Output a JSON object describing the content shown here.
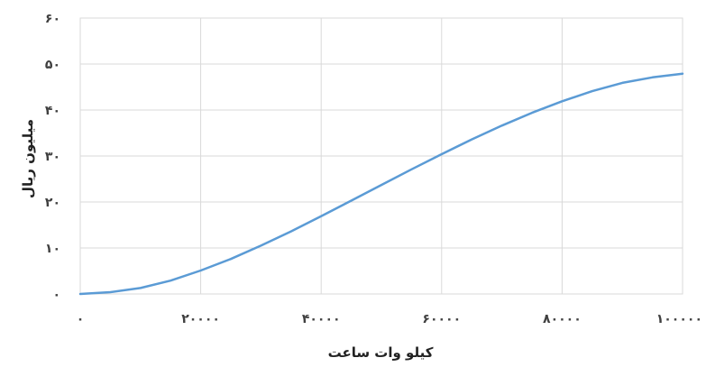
{
  "chart_data": {
    "type": "line",
    "title": "",
    "xlabel": "کیلو وات ساعت",
    "ylabel": "میلیون ریال",
    "xlim": [
      0,
      100000
    ],
    "ylim": [
      0,
      60
    ],
    "x_ticks": [
      0,
      20000,
      40000,
      60000,
      80000,
      100000
    ],
    "x_tick_labels": [
      "۰",
      "۲۰۰۰۰",
      "۴۰۰۰۰",
      "۶۰۰۰۰",
      "۸۰۰۰۰",
      "۱۰۰۰۰۰"
    ],
    "y_ticks": [
      0,
      10,
      20,
      30,
      40,
      50,
      60
    ],
    "y_tick_labels": [
      "۰",
      "۱۰",
      "۲۰",
      "۳۰",
      "۴۰",
      "۵۰",
      "۶۰"
    ],
    "grid": true,
    "legend": "none",
    "series": [
      {
        "color": "#5b9bd5",
        "x": [
          0,
          5000,
          10000,
          15000,
          20000,
          25000,
          30000,
          35000,
          40000,
          45000,
          50000,
          55000,
          60000,
          65000,
          70000,
          75000,
          80000,
          85000,
          90000,
          95000,
          100000
        ],
        "y": [
          0,
          0.4,
          1.3,
          2.9,
          5.1,
          7.6,
          10.5,
          13.6,
          16.9,
          20.3,
          23.7,
          27.1,
          30.4,
          33.6,
          36.6,
          39.4,
          41.9,
          44.1,
          45.9,
          47.1,
          47.9
        ]
      }
    ]
  }
}
